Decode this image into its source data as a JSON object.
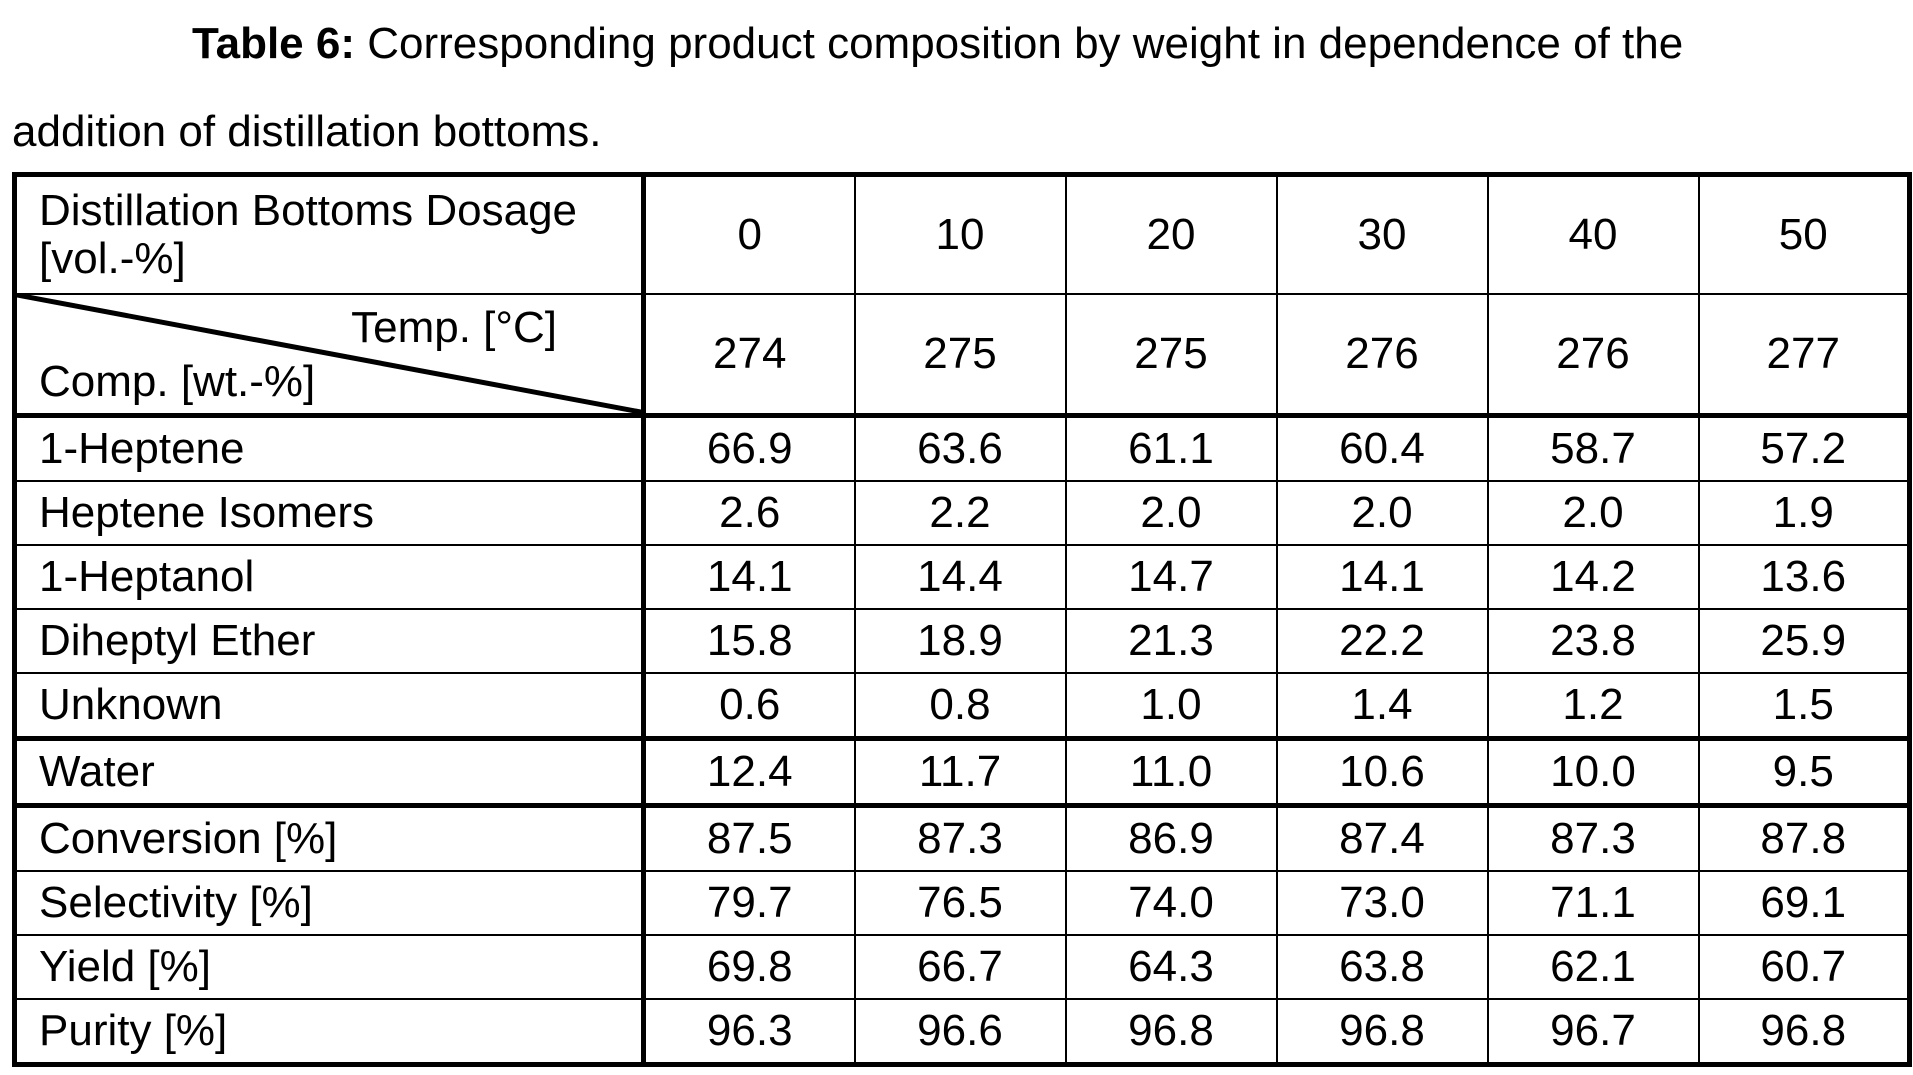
{
  "caption": {
    "label": "Table 6:",
    "text_line1": " Corresponding product composition by weight in dependence of the",
    "text_line2": "addition of distillation bottoms."
  },
  "table": {
    "dosage_label": "Distillation Bottoms Dosage [vol.-%]",
    "dosages": [
      "0",
      "10",
      "20",
      "30",
      "40",
      "50"
    ],
    "diag_temp_label": "Temp. [°C]",
    "diag_comp_label": "Comp. [wt.-%]",
    "temps": [
      "274",
      "275",
      "275",
      "276",
      "276",
      "277"
    ],
    "rows": [
      {
        "label": "1-Heptene",
        "values": [
          "66.9",
          "63.6",
          "61.1",
          "60.4",
          "58.7",
          "57.2"
        ]
      },
      {
        "label": "Heptene Isomers",
        "values": [
          "2.6",
          "2.2",
          "2.0",
          "2.0",
          "2.0",
          "1.9"
        ]
      },
      {
        "label": "1-Heptanol",
        "values": [
          "14.1",
          "14.4",
          "14.7",
          "14.1",
          "14.2",
          "13.6"
        ]
      },
      {
        "label": "Diheptyl Ether",
        "values": [
          "15.8",
          "18.9",
          "21.3",
          "22.2",
          "23.8",
          "25.9"
        ]
      },
      {
        "label": "Unknown",
        "values": [
          "0.6",
          "0.8",
          "1.0",
          "1.4",
          "1.2",
          "1.5"
        ]
      },
      {
        "label": "Water",
        "values": [
          "12.4",
          "11.7",
          "11.0",
          "10.6",
          "10.0",
          "9.5"
        ]
      },
      {
        "label": "Conversion [%]",
        "values": [
          "87.5",
          "87.3",
          "86.9",
          "87.4",
          "87.3",
          "87.8"
        ]
      },
      {
        "label": "Selectivity [%]",
        "values": [
          "79.7",
          "76.5",
          "74.0",
          "73.0",
          "71.1",
          "69.1"
        ]
      },
      {
        "label": "Yield [%]",
        "values": [
          "69.8",
          "66.7",
          "64.3",
          "63.8",
          "62.1",
          "60.7"
        ]
      },
      {
        "label": "Purity [%]",
        "values": [
          "96.3",
          "96.6",
          "96.8",
          "96.8",
          "96.7",
          "96.8"
        ]
      }
    ]
  }
}
